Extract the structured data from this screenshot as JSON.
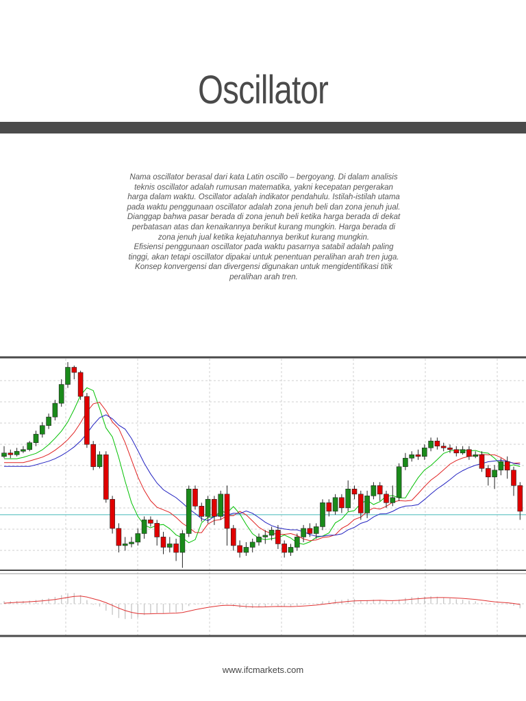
{
  "document": {
    "title": "Oscillator",
    "paragraphs": [
      "Nama oscillator berasal dari kata Latin oscillo – bergoyang. Di dalam analisis teknis oscillator adalah rumusan matematika, yakni kecepatan pergerakan harga dalam waktu. Oscillator adalah indikator pendahulu. Istilah-istilah utama pada waktu penggunaan oscillator adalah zona jenuh beli dan zona jenuh jual. Dianggap bahwa pasar berada di zona jenuh beli ketika harga berada di dekat perbatasan atas dan kenaikannya berikut kurang mungkin. Harga berada di zona jenuh jual ketika kejatuhannya berikut kurang mungkin.",
      "Efisiensi penggunaan oscillator pada waktu pasarnya satabil adalah paling tinggi, akan tetapi oscillator dipakai untuk penentuan peralihan arah tren juga.",
      "Konsep konvergensi dan divergensi digunakan untuk mengidentifikasi titik peralihan arah tren."
    ],
    "footer": "www.ifcmarkets.com"
  },
  "colors": {
    "bull": "#1a8a1a",
    "bear": "#e00000",
    "ma_fast": "#00c000",
    "ma_mid": "#e02020",
    "ma_slow": "#2020c0",
    "level_line": "#40b8b8",
    "grid": "#cfcfcf",
    "frame": "#4a4a4a",
    "histogram": "#c8c8c8",
    "signal": "#e03030"
  },
  "chart_data": {
    "type": "candlestick",
    "grid": true,
    "candles": [
      [
        2.7,
        2.9,
        3.3,
        2.6
      ],
      [
        2.9,
        2.8,
        3.1,
        2.6
      ],
      [
        2.8,
        3.0,
        3.2,
        2.7
      ],
      [
        3.0,
        3.1,
        3.3,
        2.9
      ],
      [
        3.1,
        3.5,
        3.6,
        3.0
      ],
      [
        3.5,
        4.0,
        4.2,
        3.3
      ],
      [
        4.0,
        4.5,
        4.7,
        3.8
      ],
      [
        4.5,
        5.0,
        5.2,
        4.3
      ],
      [
        5.0,
        5.8,
        6.0,
        4.8
      ],
      [
        5.8,
        6.9,
        7.2,
        5.6
      ],
      [
        6.9,
        7.9,
        8.2,
        6.7
      ],
      [
        7.9,
        7.6,
        8.0,
        7.2
      ],
      [
        7.6,
        6.2,
        7.7,
        6.0
      ],
      [
        6.2,
        3.4,
        6.4,
        3.2
      ],
      [
        3.4,
        2.1,
        3.6,
        1.9
      ],
      [
        2.1,
        2.8,
        3.0,
        2.0
      ],
      [
        2.8,
        0.2,
        3.0,
        0.0
      ],
      [
        0.2,
        -1.5,
        0.4,
        -1.8
      ],
      [
        -1.5,
        -2.5,
        -1.2,
        -2.9
      ],
      [
        -2.5,
        -2.4,
        -2.0,
        -2.8
      ],
      [
        -2.4,
        -2.3,
        -2.0,
        -2.6
      ],
      [
        -2.3,
        -1.8,
        -1.5,
        -2.5
      ],
      [
        -1.8,
        -1.0,
        -0.8,
        -2.1
      ],
      [
        -1.0,
        -1.2,
        -0.8,
        -1.4
      ],
      [
        -1.2,
        -2.0,
        -1.0,
        -2.5
      ],
      [
        -2.0,
        -2.6,
        -1.7,
        -3.0
      ],
      [
        -2.6,
        -2.4,
        -2.0,
        -2.9
      ],
      [
        -2.4,
        -2.9,
        -2.1,
        -3.4
      ],
      [
        -2.9,
        -1.8,
        -1.6,
        -3.8
      ],
      [
        -1.8,
        0.8,
        1.0,
        -2.0
      ],
      [
        0.8,
        -0.2,
        1.0,
        -0.4
      ],
      [
        -0.2,
        -0.8,
        0.0,
        -1.1
      ],
      [
        -0.8,
        0.2,
        0.4,
        -1.2
      ],
      [
        0.2,
        -0.8,
        0.4,
        -1.3
      ],
      [
        -0.8,
        0.5,
        0.7,
        -1.0
      ],
      [
        0.5,
        -1.5,
        1.0,
        -2.5
      ],
      [
        -1.5,
        -2.5,
        -1.3,
        -2.8
      ],
      [
        -2.5,
        -2.9,
        -2.2,
        -3.2
      ],
      [
        -2.9,
        -2.6,
        -2.3,
        -3.1
      ],
      [
        -2.6,
        -2.3,
        -2.1,
        -2.9
      ],
      [
        -2.3,
        -2.0,
        -1.8,
        -2.5
      ],
      [
        -2.0,
        -1.9,
        -1.6,
        -2.4
      ],
      [
        -1.9,
        -1.6,
        -1.4,
        -2.2
      ],
      [
        -1.6,
        -2.4,
        -1.3,
        -2.7
      ],
      [
        -2.4,
        -2.9,
        -2.2,
        -3.2
      ],
      [
        -2.9,
        -2.6,
        -2.4,
        -3.1
      ],
      [
        -2.6,
        -2.0,
        -1.8,
        -2.8
      ],
      [
        -2.0,
        -1.5,
        -1.3,
        -2.3
      ],
      [
        -1.5,
        -1.8,
        -1.2,
        -2.0
      ],
      [
        -1.8,
        -1.4,
        -1.2,
        -2.1
      ],
      [
        -1.4,
        0.0,
        0.2,
        -1.6
      ],
      [
        0.0,
        -0.5,
        0.2,
        -0.8
      ],
      [
        -0.5,
        0.3,
        0.5,
        -0.7
      ],
      [
        0.3,
        -0.3,
        0.5,
        -0.6
      ],
      [
        -0.3,
        0.8,
        1.3,
        -0.5
      ],
      [
        0.8,
        0.5,
        1.0,
        0.2
      ],
      [
        0.5,
        -0.6,
        0.7,
        -1.0
      ],
      [
        -0.6,
        0.4,
        0.7,
        -0.9
      ],
      [
        0.4,
        1.0,
        1.2,
        0.2
      ],
      [
        1.0,
        0.5,
        1.2,
        0.1
      ],
      [
        0.5,
        0.0,
        0.7,
        -0.3
      ],
      [
        0.0,
        0.3,
        1.0,
        -0.2
      ],
      [
        0.3,
        2.1,
        2.3,
        0.1
      ],
      [
        2.1,
        2.6,
        2.9,
        1.9
      ],
      [
        2.6,
        2.8,
        3.0,
        2.4
      ],
      [
        2.8,
        2.7,
        3.1,
        2.5
      ],
      [
        2.7,
        3.2,
        3.4,
        2.5
      ],
      [
        3.2,
        3.6,
        3.8,
        3.0
      ],
      [
        3.6,
        3.3,
        3.8,
        3.1
      ],
      [
        3.3,
        3.2,
        3.5,
        3.0
      ],
      [
        3.2,
        3.1,
        3.4,
        2.9
      ],
      [
        3.1,
        2.9,
        3.3,
        2.7
      ],
      [
        2.9,
        3.1,
        3.3,
        2.8
      ],
      [
        3.1,
        2.7,
        3.3,
        2.5
      ],
      [
        2.7,
        2.8,
        3.0,
        2.6
      ],
      [
        2.8,
        2.0,
        3.0,
        1.8
      ],
      [
        2.0,
        1.5,
        2.2,
        1.0
      ],
      [
        1.5,
        1.9,
        2.2,
        0.8
      ],
      [
        1.9,
        2.4,
        2.6,
        1.6
      ],
      [
        2.4,
        1.9,
        2.7,
        1.4
      ],
      [
        1.9,
        1.0,
        2.1,
        0.4
      ],
      [
        1.0,
        -0.5,
        1.2,
        -1.0
      ]
    ]
  }
}
